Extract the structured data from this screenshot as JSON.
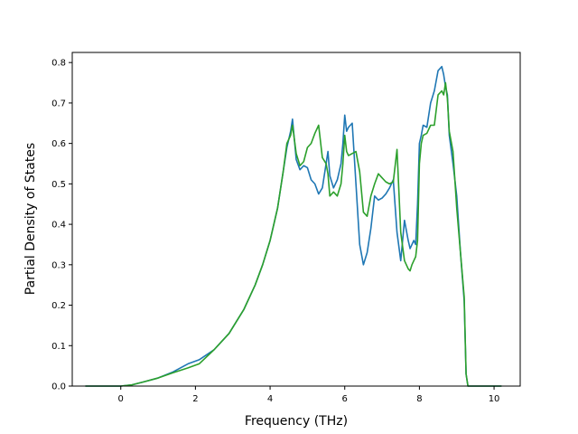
{
  "chart_data": {
    "type": "line",
    "xlabel": "Frequency (THz)",
    "ylabel": "Partial Density of States",
    "xlim": [
      -1.3,
      10.7
    ],
    "ylim": [
      0.0,
      0.825
    ],
    "xticks": [
      "0",
      "2",
      "4",
      "6",
      "8",
      "10"
    ],
    "yticks": [
      "0.0",
      "0.1",
      "0.2",
      "0.3",
      "0.4",
      "0.5",
      "0.6",
      "0.7",
      "0.8"
    ],
    "grid": false,
    "series": [
      {
        "color": "#1f77b4",
        "x": [
          -0.95,
          0.0,
          0.3,
          0.6,
          1.0,
          1.4,
          1.8,
          2.1,
          2.5,
          2.9,
          3.3,
          3.6,
          3.8,
          4.0,
          4.2,
          4.35,
          4.45,
          4.55,
          4.6,
          4.7,
          4.8,
          4.9,
          5.0,
          5.1,
          5.2,
          5.3,
          5.4,
          5.5,
          5.55,
          5.6,
          5.7,
          5.8,
          5.9,
          5.95,
          6.0,
          6.05,
          6.1,
          6.2,
          6.3,
          6.4,
          6.5,
          6.6,
          6.7,
          6.8,
          6.9,
          7.0,
          7.1,
          7.2,
          7.3,
          7.4,
          7.5,
          7.6,
          7.7,
          7.75,
          7.8,
          7.85,
          7.9,
          7.95,
          8.0,
          8.05,
          8.1,
          8.2,
          8.3,
          8.4,
          8.5,
          8.6,
          8.65,
          8.7,
          8.75,
          8.8,
          8.9,
          9.0,
          9.1,
          9.2,
          9.25,
          9.3,
          9.4,
          10.2
        ],
        "y": [
          0.0,
          0.0,
          0.003,
          0.01,
          0.02,
          0.035,
          0.055,
          0.065,
          0.09,
          0.13,
          0.19,
          0.25,
          0.3,
          0.36,
          0.44,
          0.53,
          0.59,
          0.63,
          0.66,
          0.56,
          0.535,
          0.545,
          0.54,
          0.51,
          0.5,
          0.475,
          0.49,
          0.55,
          0.58,
          0.52,
          0.49,
          0.51,
          0.55,
          0.6,
          0.67,
          0.63,
          0.64,
          0.65,
          0.5,
          0.35,
          0.3,
          0.33,
          0.39,
          0.47,
          0.46,
          0.465,
          0.475,
          0.49,
          0.51,
          0.38,
          0.31,
          0.41,
          0.36,
          0.34,
          0.35,
          0.36,
          0.35,
          0.45,
          0.6,
          0.62,
          0.645,
          0.64,
          0.7,
          0.73,
          0.78,
          0.79,
          0.77,
          0.74,
          0.72,
          0.62,
          0.55,
          0.47,
          0.33,
          0.21,
          0.03,
          0.0,
          0.0,
          0.0
        ]
      },
      {
        "color": "#2ca02c",
        "x": [
          -0.95,
          0.0,
          0.3,
          0.6,
          1.0,
          1.4,
          1.8,
          2.1,
          2.5,
          2.9,
          3.3,
          3.6,
          3.8,
          4.0,
          4.2,
          4.35,
          4.45,
          4.55,
          4.6,
          4.7,
          4.8,
          4.9,
          5.0,
          5.1,
          5.2,
          5.3,
          5.4,
          5.5,
          5.55,
          5.6,
          5.7,
          5.8,
          5.9,
          5.95,
          6.0,
          6.05,
          6.1,
          6.2,
          6.3,
          6.4,
          6.5,
          6.6,
          6.7,
          6.8,
          6.9,
          7.0,
          7.1,
          7.2,
          7.3,
          7.4,
          7.5,
          7.6,
          7.7,
          7.75,
          7.8,
          7.85,
          7.9,
          7.95,
          8.0,
          8.05,
          8.1,
          8.2,
          8.3,
          8.4,
          8.5,
          8.6,
          8.65,
          8.7,
          8.75,
          8.8,
          8.9,
          9.0,
          9.1,
          9.2,
          9.25,
          9.3,
          9.4,
          10.2
        ],
        "y": [
          0.0,
          0.0,
          0.003,
          0.01,
          0.02,
          0.033,
          0.045,
          0.055,
          0.09,
          0.13,
          0.19,
          0.25,
          0.3,
          0.36,
          0.44,
          0.53,
          0.6,
          0.62,
          0.645,
          0.575,
          0.545,
          0.555,
          0.59,
          0.6,
          0.625,
          0.645,
          0.565,
          0.55,
          0.525,
          0.47,
          0.48,
          0.47,
          0.5,
          0.55,
          0.62,
          0.58,
          0.57,
          0.575,
          0.58,
          0.53,
          0.43,
          0.42,
          0.47,
          0.5,
          0.525,
          0.515,
          0.505,
          0.5,
          0.505,
          0.585,
          0.38,
          0.31,
          0.29,
          0.285,
          0.3,
          0.31,
          0.32,
          0.36,
          0.55,
          0.6,
          0.62,
          0.625,
          0.645,
          0.645,
          0.72,
          0.73,
          0.72,
          0.75,
          0.71,
          0.63,
          0.58,
          0.44,
          0.33,
          0.22,
          0.03,
          0.0,
          0.0,
          0.0
        ]
      }
    ]
  }
}
